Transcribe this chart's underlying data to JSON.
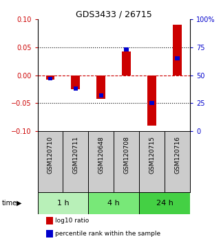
{
  "title": "GDS3433 / 26715",
  "samples": [
    "GSM120710",
    "GSM120711",
    "GSM120648",
    "GSM120708",
    "GSM120715",
    "GSM120716"
  ],
  "groups": [
    {
      "label": "1 h",
      "indices": [
        0,
        1
      ],
      "color": "#b8f0b8"
    },
    {
      "label": "4 h",
      "indices": [
        2,
        3
      ],
      "color": "#78e878"
    },
    {
      "label": "24 h",
      "indices": [
        4,
        5
      ],
      "color": "#44d044"
    }
  ],
  "log10_ratio": [
    -0.008,
    -0.025,
    -0.042,
    0.042,
    -0.09,
    0.09
  ],
  "percentile_rank": [
    47,
    38,
    32,
    73,
    25,
    65
  ],
  "ylim_left": [
    -0.1,
    0.1
  ],
  "ylim_right": [
    0,
    100
  ],
  "red_color": "#cc0000",
  "blue_color": "#0000cc",
  "zero_line_color": "#cc0000",
  "dotted_color": "#000000",
  "bg_color": "#ffffff",
  "label_area_bg": "#cccccc",
  "legend_red_label": "log10 ratio",
  "legend_blue_label": "percentile rank within the sample",
  "yticks_left": [
    -0.1,
    -0.05,
    0,
    0.05,
    0.1
  ],
  "yticks_right": [
    0,
    25,
    50,
    75,
    100
  ],
  "ytick_labels_right": [
    "0",
    "25",
    "50",
    "75",
    "100%"
  ]
}
